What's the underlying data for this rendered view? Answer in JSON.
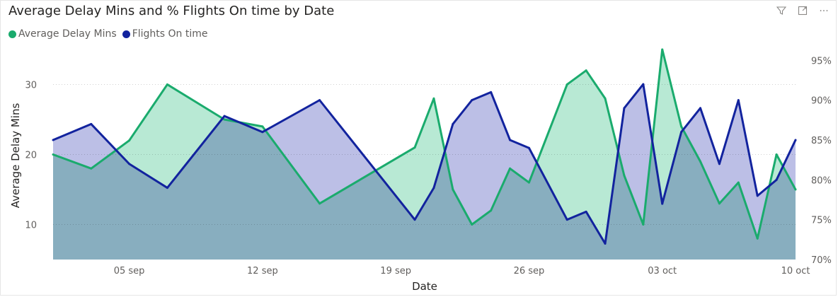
{
  "title": "Average Delay Mins and % Flights On time by Date",
  "toolbar": {
    "filter_icon": "filter-icon",
    "focus_icon": "focus-mode-icon",
    "more_icon": "more-options-icon",
    "more_label": "···"
  },
  "legend": [
    {
      "label": "Average Delay Mins",
      "color": "#1aab6d"
    },
    {
      "label": "Flights On time",
      "color": "#12239e"
    }
  ],
  "chart_data": {
    "type": "area",
    "xlabel": "Date",
    "ylabel": "Average Delay Mins",
    "x_ticks": [
      "05 sep",
      "12 sep",
      "19 sep",
      "26 sep",
      "03 oct",
      "10 oct"
    ],
    "x_tick_days": [
      5,
      12,
      19,
      26,
      33,
      40
    ],
    "y_left_ticks": [
      10,
      20,
      30
    ],
    "y_left_range": [
      5,
      35.5
    ],
    "y_right_ticks": [
      "70%",
      "75%",
      "80%",
      "85%",
      "90%",
      "95%"
    ],
    "y_right_range": [
      0.7,
      0.968
    ],
    "grid": true,
    "legend_position": "top-left",
    "series": [
      {
        "name": "Average Delay Mins",
        "axis": "left",
        "color": "#1aab6d",
        "fill": "#9de0c3",
        "x": [
          1,
          3,
          5,
          7,
          10,
          12,
          15,
          20,
          21,
          22,
          23,
          24,
          25,
          26,
          28,
          29,
          30,
          31,
          32,
          33,
          34,
          35,
          36,
          37,
          38,
          39,
          40
        ],
        "values": [
          20,
          18,
          22,
          30,
          25,
          24,
          13,
          21,
          28,
          15,
          10,
          12,
          18,
          16,
          30,
          32,
          28,
          17,
          10,
          35,
          24,
          19,
          13,
          16,
          8,
          20,
          15
        ]
      },
      {
        "name": "Flights On time",
        "axis": "right",
        "color": "#12239e",
        "fill": "#a2a6dc",
        "x": [
          1,
          3,
          5,
          7,
          10,
          12,
          15,
          20,
          21,
          22,
          23,
          24,
          25,
          26,
          28,
          29,
          30,
          31,
          32,
          33,
          34,
          35,
          36,
          37,
          38,
          39,
          40
        ],
        "values": [
          0.85,
          0.87,
          0.82,
          0.79,
          0.88,
          0.86,
          0.9,
          0.75,
          0.79,
          0.87,
          0.9,
          0.91,
          0.85,
          0.84,
          0.75,
          0.76,
          0.72,
          0.89,
          0.92,
          0.77,
          0.86,
          0.89,
          0.82,
          0.9,
          0.78,
          0.8,
          0.85
        ]
      }
    ]
  }
}
